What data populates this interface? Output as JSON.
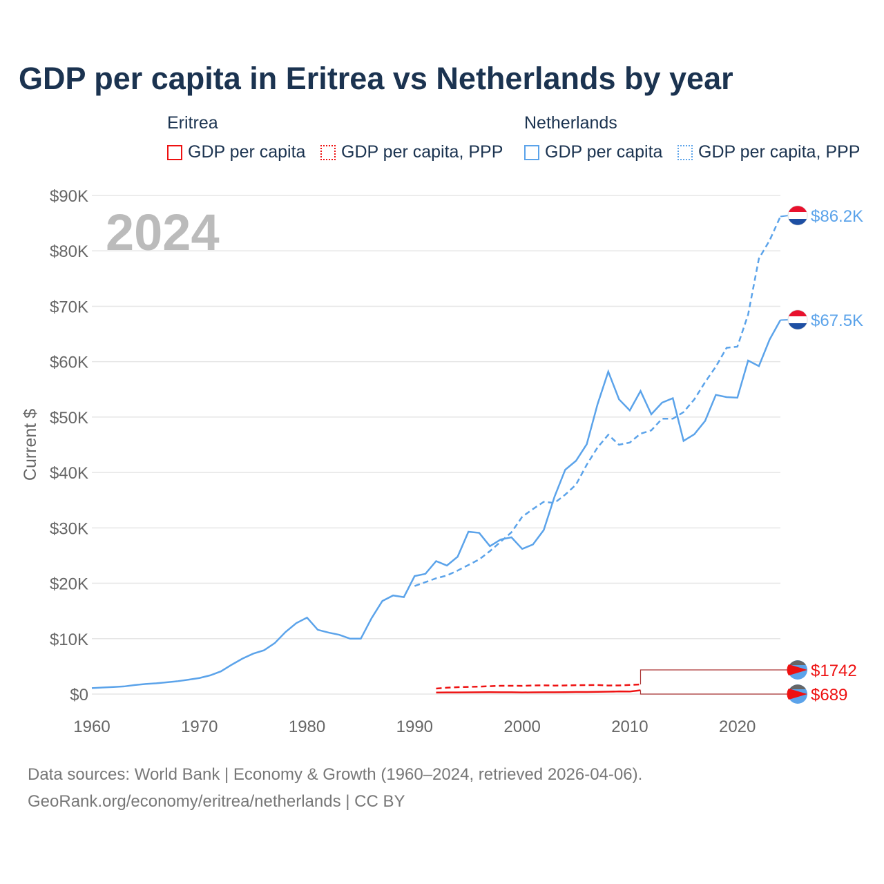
{
  "title": "GDP per capita in Eritrea vs Netherlands by year",
  "legend": {
    "groups": [
      {
        "country": "Eritrea",
        "color": "#ee1111",
        "items": [
          "GDP per capita",
          "GDP per capita, PPP"
        ]
      },
      {
        "country": "Netherlands",
        "color": "#5ba3ea",
        "items": [
          "GDP per capita",
          "GDP per capita, PPP"
        ]
      }
    ]
  },
  "year_watermark": "2024",
  "footer": {
    "line1": "Data sources: World Bank | Economy & Growth (1960–2024, retrieved 2026-04-06).",
    "line2": "GeoRank.org/economy/eritrea/netherlands | CC BY"
  },
  "chart_data": {
    "type": "line",
    "title": "GDP per capita in Eritrea vs Netherlands by year",
    "xlabel": "",
    "ylabel": "Current $",
    "xlim": [
      1960,
      2024
    ],
    "ylim": [
      0,
      90000
    ],
    "x_ticks": [
      1960,
      1970,
      1980,
      1990,
      2000,
      2010,
      2020
    ],
    "x_tick_labels": [
      "1960",
      "1970",
      "1980",
      "1990",
      "2000",
      "2010",
      "2020"
    ],
    "y_ticks": [
      0,
      10000,
      20000,
      30000,
      40000,
      50000,
      60000,
      70000,
      80000,
      90000
    ],
    "y_tick_labels": [
      "$0",
      "$10K",
      "$20K",
      "$30K",
      "$40K",
      "$50K",
      "$60K",
      "$70K",
      "$80K",
      "$90K"
    ],
    "grid": true,
    "series": [
      {
        "name": "Netherlands GDP per capita",
        "color": "#5ba3ea",
        "dash": false,
        "start": 1960,
        "end_label": "$67.5K",
        "values": [
          1069,
          1180,
          1280,
          1380,
          1630,
          1820,
          1950,
          2130,
          2330,
          2600,
          2900,
          3380,
          4100,
          5300,
          6400,
          7300,
          7900,
          9200,
          11200,
          12800,
          13800,
          11600,
          11100,
          10700,
          10000,
          10000,
          13700,
          16800,
          17800,
          17500,
          21300,
          21700,
          24000,
          23200,
          24800,
          29300,
          29100,
          26700,
          27900,
          28300,
          26200,
          27000,
          29600,
          35600,
          40500,
          42100,
          45100,
          52300,
          58200,
          53200,
          51200,
          54700,
          50500,
          52600,
          53400,
          45700,
          46900,
          49300,
          54000,
          53600,
          53500,
          60200,
          59200,
          64000,
          67500
        ]
      },
      {
        "name": "Netherlands GDP per capita, PPP",
        "color": "#5ba3ea",
        "dash": true,
        "start": 1990,
        "end_label": "$86.2K",
        "values": [
          19500,
          20200,
          20900,
          21400,
          22300,
          23300,
          24300,
          25800,
          27500,
          29200,
          32000,
          33400,
          34700,
          34500,
          36000,
          37800,
          41400,
          44500,
          46800,
          45000,
          45400,
          47000,
          47600,
          49700,
          49700,
          50900,
          53200,
          56300,
          59100,
          62500,
          62700,
          68500,
          78600,
          81900,
          86200
        ]
      },
      {
        "name": "Eritrea GDP per capita",
        "color": "#ee1111",
        "dash": false,
        "start": 1992,
        "end_label": "$689",
        "values": [
          280,
          290,
          300,
          310,
          330,
          340,
          330,
          320,
          300,
          310,
          320,
          330,
          350,
          370,
          380,
          400,
          430,
          480,
          460,
          689
        ]
      },
      {
        "name": "Eritrea GDP per capita, PPP",
        "color": "#ee1111",
        "dash": true,
        "start": 1992,
        "end_label": "$1742",
        "values": [
          1000,
          1150,
          1250,
          1300,
          1350,
          1420,
          1500,
          1500,
          1480,
          1550,
          1580,
          1530,
          1560,
          1600,
          1620,
          1640,
          1550,
          1560,
          1650,
          1742
        ]
      }
    ]
  }
}
